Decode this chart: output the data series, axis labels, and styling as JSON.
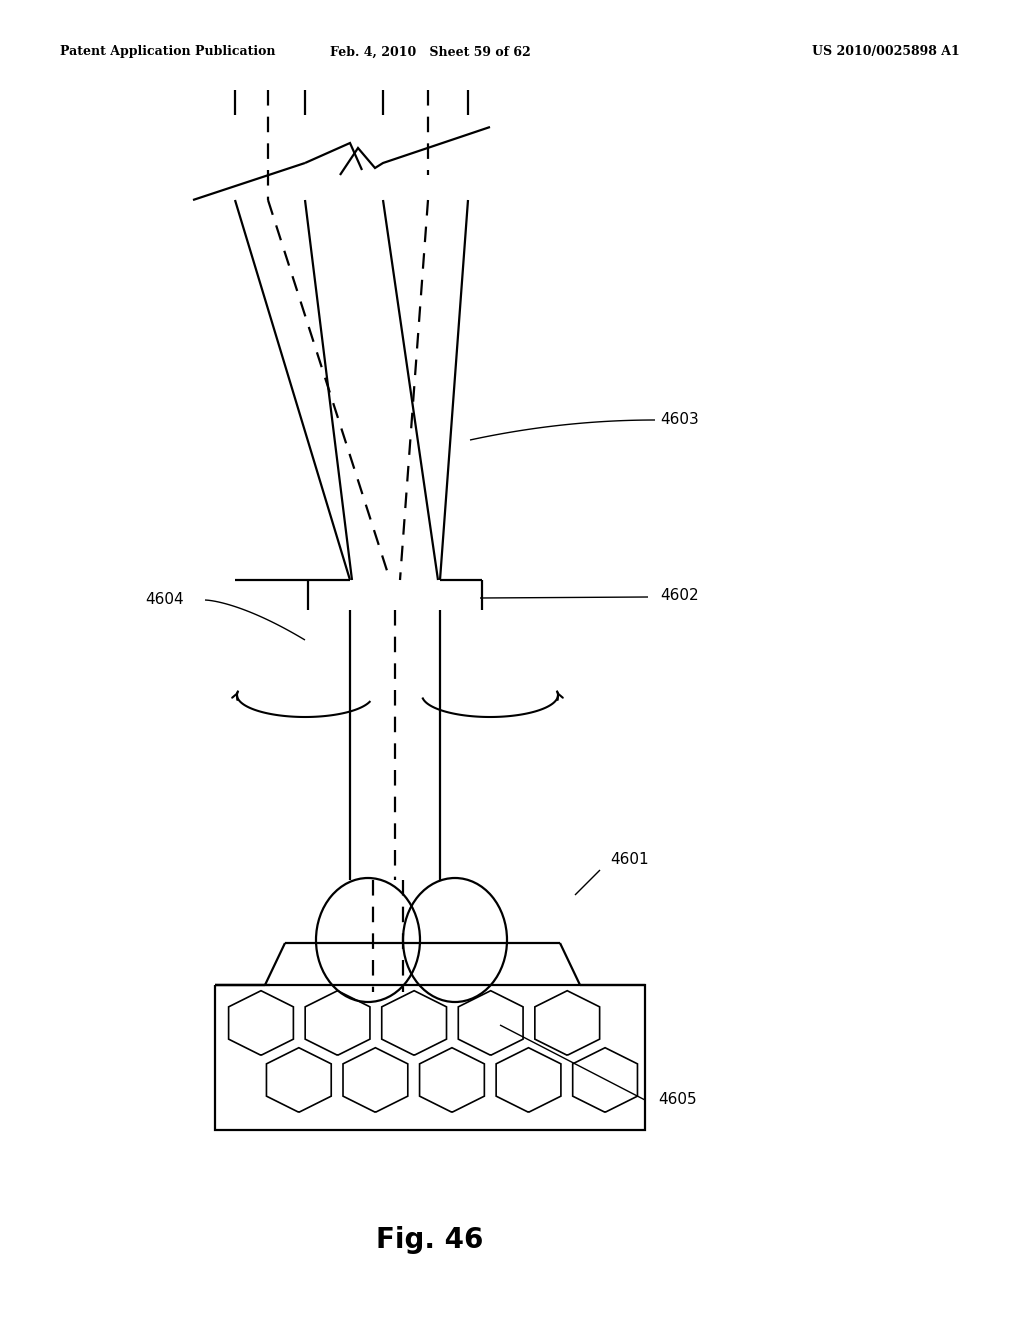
{
  "title_left": "Patent Application Publication",
  "title_mid": "Feb. 4, 2010   Sheet 59 of 62",
  "title_right": "US 2010/0025898 A1",
  "fig_label": "Fig. 46",
  "bg_color": "#ffffff",
  "line_color": "#000000",
  "line_width": 1.6
}
